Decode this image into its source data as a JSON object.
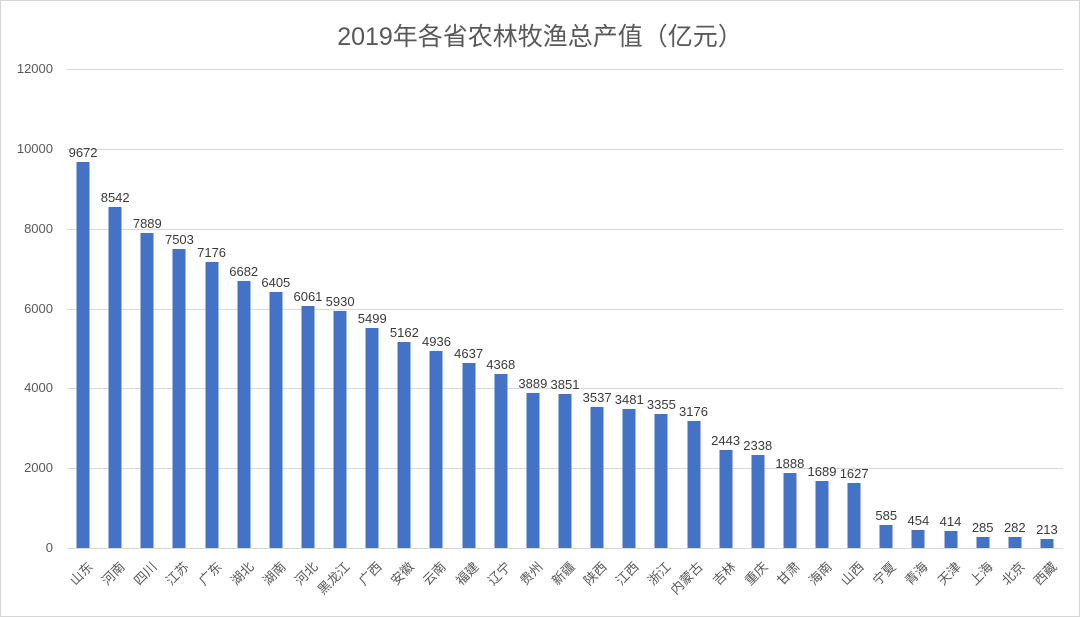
{
  "chart_data": {
    "type": "bar",
    "title": "2019年各省农林牧渔总产值（亿元）",
    "categories": [
      "山东",
      "河南",
      "四川",
      "江苏",
      "广东",
      "湖北",
      "湖南",
      "河北",
      "黑龙江",
      "广西",
      "安徽",
      "云南",
      "福建",
      "辽宁",
      "贵州",
      "新疆",
      "陕西",
      "江西",
      "浙江",
      "内蒙古",
      "吉林",
      "重庆",
      "甘肃",
      "海南",
      "山西",
      "宁夏",
      "青海",
      "天津",
      "上海",
      "北京",
      "西藏"
    ],
    "values": [
      9672,
      8542,
      7889,
      7503,
      7176,
      6682,
      6405,
      6061,
      5930,
      5499,
      5162,
      4936,
      4637,
      4368,
      3889,
      3851,
      3537,
      3481,
      3355,
      3176,
      2443,
      2338,
      1888,
      1689,
      1627,
      585,
      454,
      414,
      285,
      282,
      213
    ],
    "yticks": [
      0,
      2000,
      4000,
      6000,
      8000,
      10000,
      12000
    ],
    "ylim": [
      0,
      12000
    ],
    "xlabel": "",
    "ylabel": "",
    "grid": true,
    "legend": false,
    "data_labels": true,
    "bar_color": "#4472C4",
    "gridline_color": "#D9D9D9",
    "title_color": "#595959",
    "value_label_color": "#3B3B3B",
    "axis_label_color": "#595959"
  }
}
